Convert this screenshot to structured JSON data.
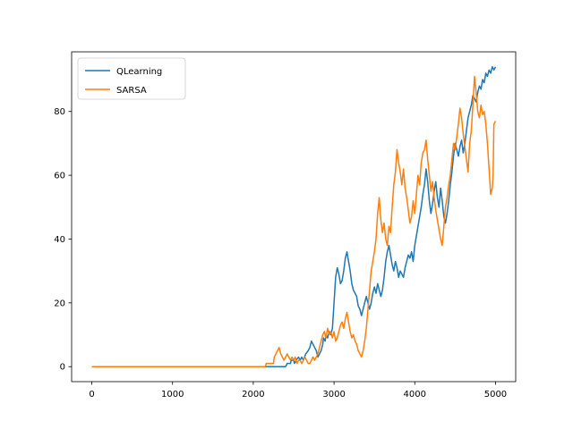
{
  "chart_data": {
    "type": "line",
    "title": "",
    "xlabel": "",
    "ylabel": "",
    "xlim": [
      -250,
      5250
    ],
    "ylim": [
      -4.7,
      98.7
    ],
    "x_ticks": [
      0,
      1000,
      2000,
      3000,
      4000,
      5000
    ],
    "y_ticks": [
      0,
      20,
      40,
      60,
      80
    ],
    "grid": false,
    "legend": "upper left",
    "series": [
      {
        "name": "QLearning",
        "color": "#1f77b4",
        "points": [
          [
            0,
            0
          ],
          [
            2200,
            0
          ],
          [
            2300,
            0
          ],
          [
            2400,
            0
          ],
          [
            2420,
            1
          ],
          [
            2460,
            1
          ],
          [
            2470,
            2
          ],
          [
            2500,
            2
          ],
          [
            2510,
            1
          ],
          [
            2530,
            2
          ],
          [
            2560,
            3
          ],
          [
            2580,
            2
          ],
          [
            2600,
            3
          ],
          [
            2620,
            2
          ],
          [
            2650,
            4
          ],
          [
            2680,
            5
          ],
          [
            2700,
            6
          ],
          [
            2720,
            8
          ],
          [
            2740,
            7
          ],
          [
            2760,
            6
          ],
          [
            2780,
            5
          ],
          [
            2800,
            3
          ],
          [
            2820,
            4
          ],
          [
            2840,
            5
          ],
          [
            2860,
            7
          ],
          [
            2870,
            9
          ],
          [
            2890,
            8
          ],
          [
            2900,
            10
          ],
          [
            2920,
            9
          ],
          [
            2940,
            11
          ],
          [
            2960,
            10
          ],
          [
            2980,
            12
          ],
          [
            3000,
            20
          ],
          [
            3020,
            28
          ],
          [
            3040,
            31
          ],
          [
            3060,
            29
          ],
          [
            3080,
            26
          ],
          [
            3100,
            27
          ],
          [
            3120,
            30
          ],
          [
            3140,
            34
          ],
          [
            3160,
            36
          ],
          [
            3180,
            33
          ],
          [
            3200,
            30
          ],
          [
            3220,
            26
          ],
          [
            3240,
            24
          ],
          [
            3260,
            23
          ],
          [
            3280,
            22
          ],
          [
            3300,
            19
          ],
          [
            3320,
            18
          ],
          [
            3340,
            16
          ],
          [
            3360,
            18
          ],
          [
            3380,
            20
          ],
          [
            3400,
            22
          ],
          [
            3420,
            20
          ],
          [
            3440,
            18
          ],
          [
            3460,
            20
          ],
          [
            3480,
            23
          ],
          [
            3500,
            25
          ],
          [
            3520,
            23
          ],
          [
            3540,
            26
          ],
          [
            3560,
            24
          ],
          [
            3580,
            22
          ],
          [
            3600,
            24
          ],
          [
            3620,
            28
          ],
          [
            3640,
            33
          ],
          [
            3660,
            36
          ],
          [
            3680,
            38
          ],
          [
            3700,
            35
          ],
          [
            3720,
            32
          ],
          [
            3740,
            30
          ],
          [
            3760,
            33
          ],
          [
            3780,
            31
          ],
          [
            3800,
            28
          ],
          [
            3820,
            30
          ],
          [
            3840,
            29
          ],
          [
            3860,
            28
          ],
          [
            3880,
            31
          ],
          [
            3900,
            33
          ],
          [
            3920,
            35
          ],
          [
            3940,
            34
          ],
          [
            3960,
            36
          ],
          [
            3980,
            33
          ],
          [
            4000,
            38
          ],
          [
            4020,
            41
          ],
          [
            4040,
            44
          ],
          [
            4060,
            47
          ],
          [
            4080,
            50
          ],
          [
            4100,
            54
          ],
          [
            4120,
            57
          ],
          [
            4140,
            62
          ],
          [
            4160,
            58
          ],
          [
            4180,
            52
          ],
          [
            4200,
            48
          ],
          [
            4220,
            51
          ],
          [
            4240,
            55
          ],
          [
            4260,
            58
          ],
          [
            4280,
            53
          ],
          [
            4300,
            50
          ],
          [
            4320,
            56
          ],
          [
            4340,
            52
          ],
          [
            4360,
            47
          ],
          [
            4380,
            45
          ],
          [
            4400,
            48
          ],
          [
            4420,
            52
          ],
          [
            4440,
            57
          ],
          [
            4460,
            61
          ],
          [
            4480,
            66
          ],
          [
            4500,
            70
          ],
          [
            4520,
            68
          ],
          [
            4540,
            66
          ],
          [
            4560,
            69
          ],
          [
            4580,
            71
          ],
          [
            4600,
            67
          ],
          [
            4620,
            70
          ],
          [
            4640,
            74
          ],
          [
            4660,
            78
          ],
          [
            4680,
            80
          ],
          [
            4700,
            82
          ],
          [
            4720,
            85
          ],
          [
            4740,
            84
          ],
          [
            4760,
            83
          ],
          [
            4780,
            86
          ],
          [
            4800,
            88
          ],
          [
            4820,
            87
          ],
          [
            4840,
            90
          ],
          [
            4860,
            89
          ],
          [
            4880,
            92
          ],
          [
            4900,
            91
          ],
          [
            4920,
            93
          ],
          [
            4940,
            92
          ],
          [
            4960,
            94
          ],
          [
            4980,
            93
          ],
          [
            5000,
            94
          ]
        ]
      },
      {
        "name": "SARSA",
        "color": "#ff7f0e",
        "points": [
          [
            0,
            0
          ],
          [
            2000,
            0
          ],
          [
            2100,
            0
          ],
          [
            2150,
            0
          ],
          [
            2160,
            1
          ],
          [
            2250,
            1
          ],
          [
            2260,
            3
          ],
          [
            2280,
            4
          ],
          [
            2300,
            5
          ],
          [
            2320,
            6
          ],
          [
            2340,
            4
          ],
          [
            2360,
            3
          ],
          [
            2380,
            2
          ],
          [
            2400,
            3
          ],
          [
            2420,
            4
          ],
          [
            2440,
            3
          ],
          [
            2460,
            2
          ],
          [
            2480,
            3
          ],
          [
            2500,
            2
          ],
          [
            2520,
            3
          ],
          [
            2540,
            1
          ],
          [
            2560,
            2
          ],
          [
            2580,
            2
          ],
          [
            2600,
            1
          ],
          [
            2620,
            2
          ],
          [
            2640,
            3
          ],
          [
            2660,
            2
          ],
          [
            2680,
            1
          ],
          [
            2700,
            1
          ],
          [
            2720,
            2
          ],
          [
            2740,
            3
          ],
          [
            2760,
            2
          ],
          [
            2780,
            3
          ],
          [
            2800,
            4
          ],
          [
            2820,
            6
          ],
          [
            2840,
            8
          ],
          [
            2860,
            10
          ],
          [
            2880,
            11
          ],
          [
            2900,
            9
          ],
          [
            2920,
            12
          ],
          [
            2940,
            10
          ],
          [
            2960,
            11
          ],
          [
            2980,
            9
          ],
          [
            3000,
            11
          ],
          [
            3020,
            8
          ],
          [
            3040,
            9
          ],
          [
            3060,
            11
          ],
          [
            3080,
            13
          ],
          [
            3100,
            14
          ],
          [
            3120,
            12
          ],
          [
            3140,
            15
          ],
          [
            3160,
            17
          ],
          [
            3180,
            14
          ],
          [
            3200,
            11
          ],
          [
            3220,
            9
          ],
          [
            3240,
            10
          ],
          [
            3260,
            8
          ],
          [
            3280,
            7
          ],
          [
            3300,
            5
          ],
          [
            3320,
            4
          ],
          [
            3340,
            3
          ],
          [
            3360,
            5
          ],
          [
            3380,
            8
          ],
          [
            3400,
            12
          ],
          [
            3420,
            18
          ],
          [
            3440,
            24
          ],
          [
            3460,
            30
          ],
          [
            3480,
            33
          ],
          [
            3500,
            36
          ],
          [
            3520,
            40
          ],
          [
            3540,
            48
          ],
          [
            3560,
            53
          ],
          [
            3580,
            46
          ],
          [
            3600,
            42
          ],
          [
            3620,
            45
          ],
          [
            3640,
            40
          ],
          [
            3660,
            38
          ],
          [
            3680,
            44
          ],
          [
            3700,
            42
          ],
          [
            3720,
            50
          ],
          [
            3740,
            57
          ],
          [
            3760,
            61
          ],
          [
            3780,
            68
          ],
          [
            3800,
            64
          ],
          [
            3820,
            61
          ],
          [
            3840,
            57
          ],
          [
            3860,
            62
          ],
          [
            3880,
            56
          ],
          [
            3900,
            53
          ],
          [
            3920,
            49
          ],
          [
            3940,
            45
          ],
          [
            3960,
            47
          ],
          [
            3980,
            52
          ],
          [
            4000,
            48
          ],
          [
            4020,
            54
          ],
          [
            4040,
            60
          ],
          [
            4060,
            57
          ],
          [
            4080,
            64
          ],
          [
            4100,
            67
          ],
          [
            4120,
            68
          ],
          [
            4140,
            71
          ],
          [
            4160,
            65
          ],
          [
            4180,
            60
          ],
          [
            4200,
            55
          ],
          [
            4220,
            58
          ],
          [
            4240,
            53
          ],
          [
            4260,
            49
          ],
          [
            4280,
            46
          ],
          [
            4300,
            43
          ],
          [
            4320,
            40
          ],
          [
            4340,
            38
          ],
          [
            4360,
            44
          ],
          [
            4380,
            50
          ],
          [
            4400,
            53
          ],
          [
            4420,
            57
          ],
          [
            4440,
            60
          ],
          [
            4460,
            65
          ],
          [
            4480,
            70
          ],
          [
            4500,
            68
          ],
          [
            4520,
            72
          ],
          [
            4540,
            76
          ],
          [
            4560,
            81
          ],
          [
            4580,
            78
          ],
          [
            4600,
            73
          ],
          [
            4620,
            69
          ],
          [
            4640,
            65
          ],
          [
            4660,
            61
          ],
          [
            4680,
            70
          ],
          [
            4700,
            74
          ],
          [
            4720,
            82
          ],
          [
            4740,
            91
          ],
          [
            4760,
            86
          ],
          [
            4780,
            80
          ],
          [
            4800,
            78
          ],
          [
            4820,
            82
          ],
          [
            4840,
            79
          ],
          [
            4860,
            80
          ],
          [
            4880,
            76
          ],
          [
            4900,
            70
          ],
          [
            4920,
            62
          ],
          [
            4940,
            54
          ],
          [
            4960,
            56
          ],
          [
            4970,
            60
          ],
          [
            4980,
            76
          ],
          [
            5000,
            77
          ]
        ]
      }
    ]
  }
}
